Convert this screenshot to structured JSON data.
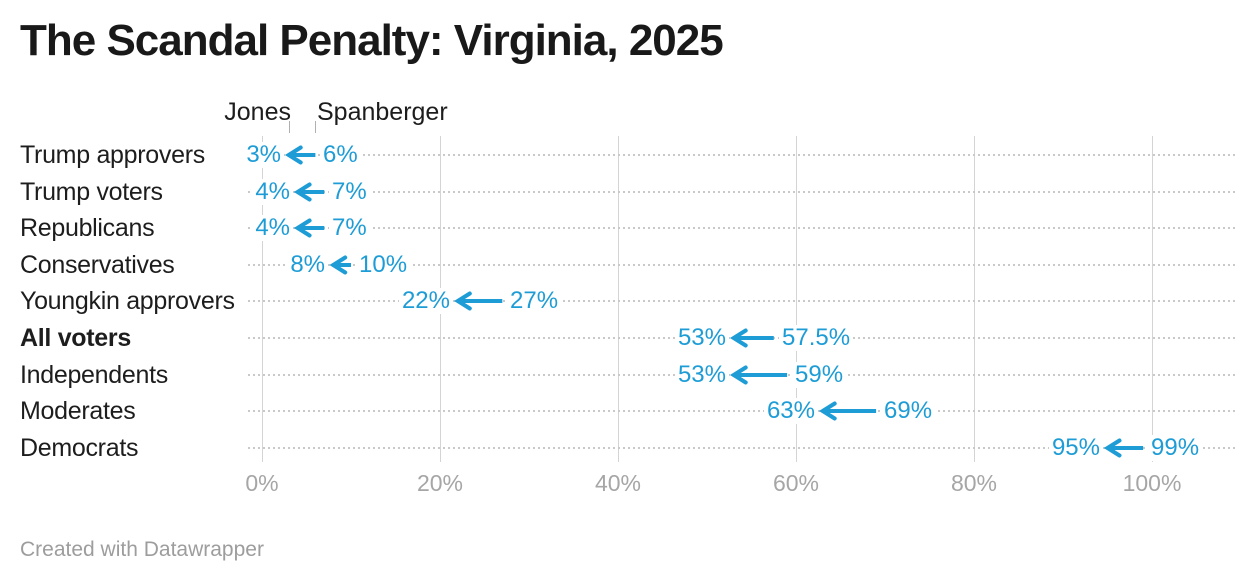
{
  "chart": {
    "title": "The Scandal Penalty: Virginia, 2025",
    "footer": "Created with Datawrapper"
  },
  "chart_data": {
    "type": "arrow",
    "title": "The Scandal Penalty: Virginia, 2025",
    "legend": {
      "end_label": "Jones",
      "start_label": "Spanberger"
    },
    "categories": [
      "Trump approvers",
      "Trump voters",
      "Republicans",
      "Conservatives",
      "Youngkin approvers",
      "All voters",
      "Independents",
      "Moderates",
      "Democrats"
    ],
    "series": [
      {
        "name": "Spanberger",
        "values": [
          6,
          7,
          7,
          10,
          27,
          57.5,
          59,
          69,
          99
        ]
      },
      {
        "name": "Jones",
        "values": [
          3,
          4,
          4,
          8,
          22,
          53,
          53,
          63,
          95
        ]
      }
    ],
    "rows": [
      {
        "label": "Trump approvers",
        "jones": 3,
        "spanberger": 6,
        "jones_display": "3%",
        "spanberger_display": "6%",
        "bold": false
      },
      {
        "label": "Trump voters",
        "jones": 4,
        "spanberger": 7,
        "jones_display": "4%",
        "spanberger_display": "7%",
        "bold": false
      },
      {
        "label": "Republicans",
        "jones": 4,
        "spanberger": 7,
        "jones_display": "4%",
        "spanberger_display": "7%",
        "bold": false
      },
      {
        "label": "Conservatives",
        "jones": 8,
        "spanberger": 10,
        "jones_display": "8%",
        "spanberger_display": "10%",
        "bold": false
      },
      {
        "label": "Youngkin approvers",
        "jones": 22,
        "spanberger": 27,
        "jones_display": "22%",
        "spanberger_display": "27%",
        "bold": false
      },
      {
        "label": "All voters",
        "jones": 53,
        "spanberger": 57.5,
        "jones_display": "53%",
        "spanberger_display": "57.5%",
        "bold": true
      },
      {
        "label": "Independents",
        "jones": 53,
        "spanberger": 59,
        "jones_display": "53%",
        "spanberger_display": "59%",
        "bold": false
      },
      {
        "label": "Moderates",
        "jones": 63,
        "spanberger": 69,
        "jones_display": "63%",
        "spanberger_display": "69%",
        "bold": false
      },
      {
        "label": "Democrats",
        "jones": 95,
        "spanberger": 99,
        "jones_display": "95%",
        "spanberger_display": "99%",
        "bold": false
      }
    ],
    "x_axis": {
      "range": [
        0,
        100
      ],
      "ticks": [
        0,
        20,
        40,
        60,
        80,
        100
      ],
      "tick_labels": [
        "0%",
        "20%",
        "40%",
        "60%",
        "80%",
        "100%"
      ],
      "grid": true
    },
    "colors": {
      "arrow": "#1d9cd6",
      "text": "#1d1d1d",
      "axis_text": "#a6a6a6",
      "gridline": "#d4d4d4",
      "dotted_guide": "#c9c9c9",
      "footer_text": "#9d9d9d"
    },
    "legend_position": "top, aligned to first row values",
    "direction": "arrows point left (Spanberger value down to Jones value)"
  }
}
